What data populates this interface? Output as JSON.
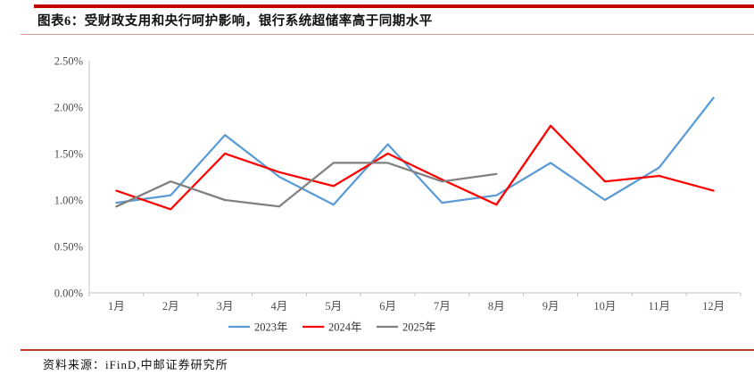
{
  "page": {
    "title": "图表6：受财政支用和央行呵护影响，银行系统超储率高于同期水平",
    "source_note": "资料来源：iFinD,中邮证券研究所"
  },
  "accent_colors": {
    "rule_thick": "#C00000",
    "rule_thin": "#D07070",
    "rule_footer": "#C0392B"
  },
  "chart_data": {
    "type": "line",
    "title": "",
    "xlabel": "",
    "ylabel": "",
    "categories": [
      "1月",
      "2月",
      "3月",
      "4月",
      "5月",
      "6月",
      "7月",
      "8月",
      "9月",
      "10月",
      "11月",
      "12月"
    ],
    "series": [
      {
        "name": "2023年",
        "color": "#5B9BD5",
        "values": [
          0.97,
          1.05,
          1.7,
          1.25,
          0.95,
          1.6,
          0.97,
          1.05,
          1.4,
          1.0,
          1.35,
          2.1
        ]
      },
      {
        "name": "2024年",
        "color": "#FE0000",
        "values": [
          1.1,
          0.9,
          1.5,
          1.3,
          1.15,
          1.5,
          1.22,
          0.95,
          1.8,
          1.2,
          1.26,
          1.1
        ]
      },
      {
        "name": "2025年",
        "color": "#808080",
        "values": [
          0.93,
          1.2,
          1.0,
          0.93,
          1.4,
          1.4,
          1.2,
          1.28
        ]
      }
    ],
    "ylim": [
      0,
      2.5
    ],
    "y_tick_labels": [
      "0.00%",
      "0.50%",
      "1.00%",
      "1.50%",
      "2.00%",
      "2.50%"
    ],
    "grid": false,
    "legend_position": "bottom",
    "axis_color": "#C3C3C3",
    "tick_label_color": "#4d4d4d"
  }
}
